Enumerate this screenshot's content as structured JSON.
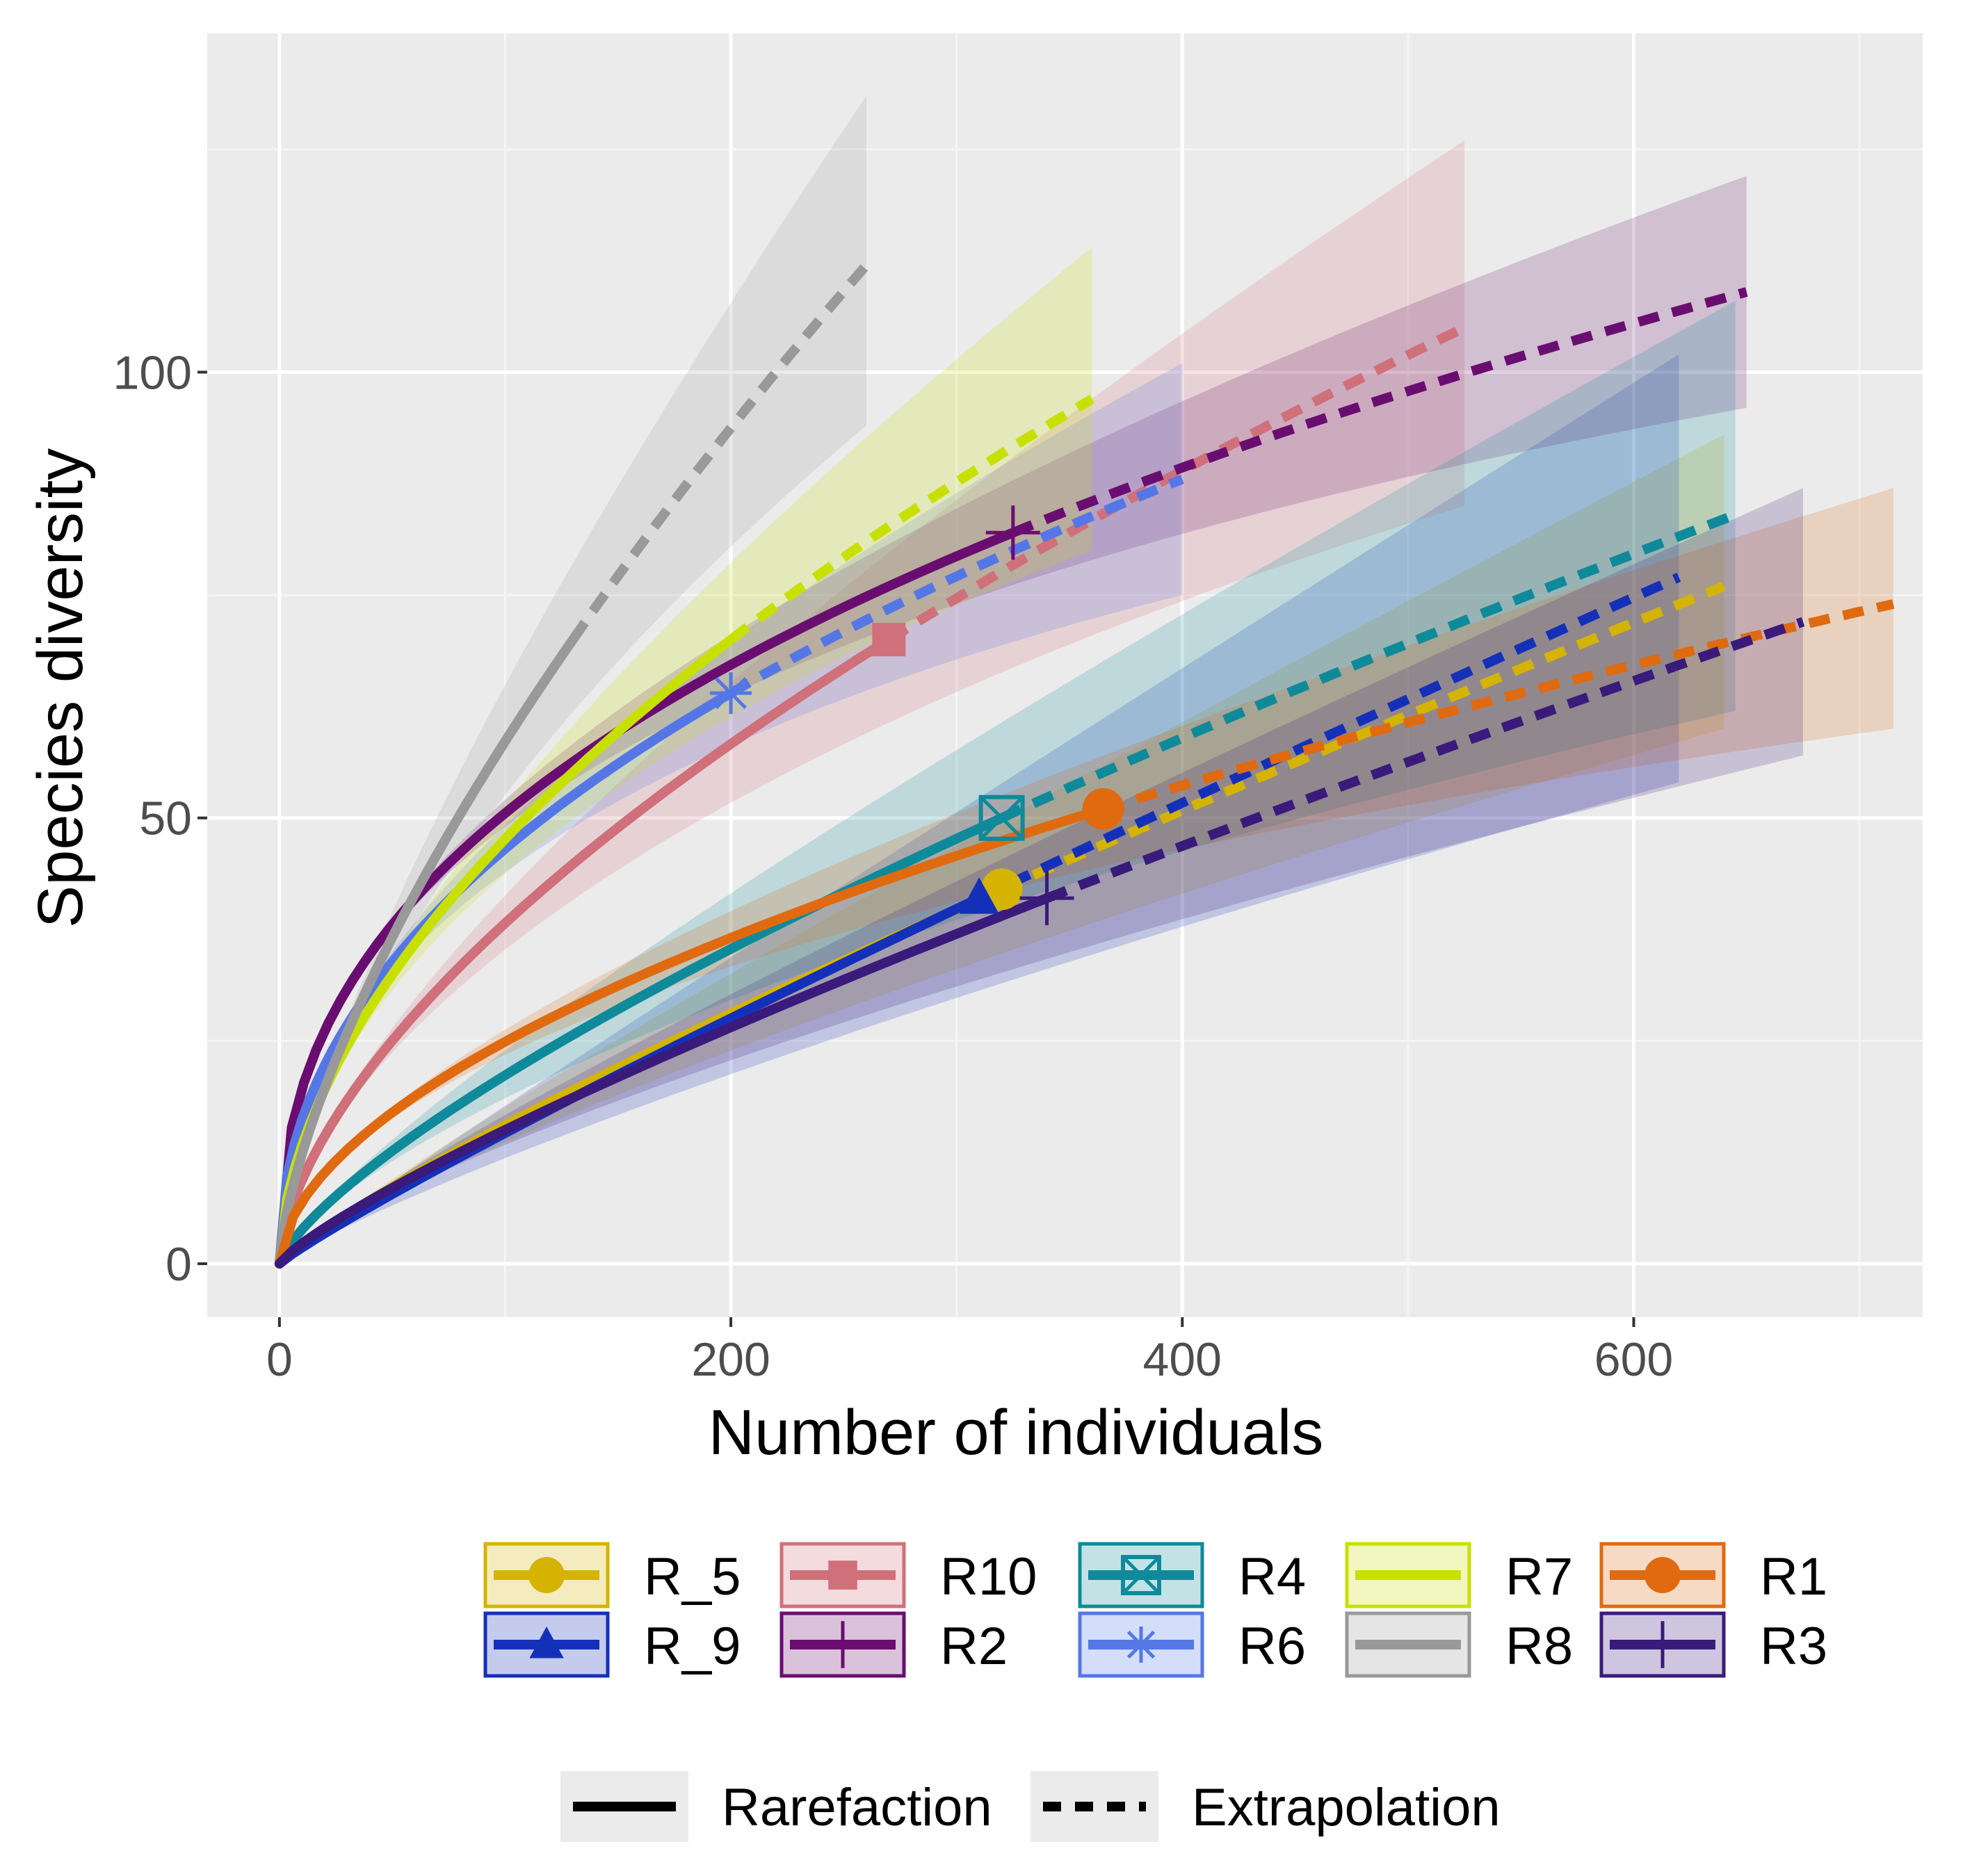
{
  "chart_data": {
    "type": "line",
    "title": "",
    "xlabel": "Number of individuals",
    "ylabel": "Species diversity",
    "xlim": [
      -32,
      728
    ],
    "ylim": [
      -6,
      138
    ],
    "x_ticks": [
      0,
      200,
      400,
      600
    ],
    "x_tick_labels": [
      "0",
      "200",
      "400",
      "600"
    ],
    "y_ticks": [
      0,
      50,
      100
    ],
    "y_tick_labels": [
      "0",
      "50",
      "100"
    ],
    "grid": true,
    "legend_position": "bottom",
    "series": [
      {
        "name": "R_5",
        "color": "#D4B400",
        "marker": "circle",
        "observed": [
          320,
          42
        ],
        "extrapolated_end": [
          640,
          76
        ],
        "band_end": [
          60,
          93
        ]
      },
      {
        "name": "R_9",
        "color": "#1530B8",
        "marker": "triangle",
        "observed": [
          310,
          41
        ],
        "extrapolated_end": [
          620,
          77
        ],
        "band_end": [
          54,
          102
        ]
      },
      {
        "name": "R10",
        "color": "#D0707A",
        "marker": "square",
        "observed": [
          270,
          70
        ],
        "extrapolated_end": [
          525,
          105
        ],
        "band_end": [
          85,
          126
        ]
      },
      {
        "name": "R2",
        "color": "#6A0D70",
        "marker": "plus",
        "observed": [
          325,
          82
        ],
        "extrapolated_end": [
          650,
          109
        ],
        "band_end": [
          96,
          122
        ]
      },
      {
        "name": "R4",
        "color": "#0E8A9A",
        "marker": "boxed-x",
        "observed": [
          320,
          50
        ],
        "extrapolated_end": [
          645,
          84
        ],
        "band_end": [
          62,
          108
        ]
      },
      {
        "name": "R6",
        "color": "#5577E6",
        "marker": "asterisk",
        "observed": [
          200,
          64
        ],
        "extrapolated_end": [
          400,
          88
        ],
        "band_end": [
          75,
          101
        ]
      },
      {
        "name": "R7",
        "color": "#C8E000",
        "marker": "none",
        "observed": [
          200,
          70
        ],
        "extrapolated_end": [
          360,
          97
        ],
        "band_end": [
          80,
          114
        ]
      },
      {
        "name": "R8",
        "color": "#999999",
        "marker": "none",
        "observed": [
          130,
          70
        ],
        "extrapolated_end": [
          260,
          112
        ],
        "band_end": [
          94,
          131
        ]
      },
      {
        "name": "R1",
        "color": "#E06A10",
        "marker": "circle",
        "observed": [
          365,
          51
        ],
        "extrapolated_end": [
          715,
          74
        ],
        "band_end": [
          60,
          87
        ]
      },
      {
        "name": "R3",
        "color": "#3A1A7A",
        "marker": "plus",
        "observed": [
          340,
          41
        ],
        "extrapolated_end": [
          675,
          72
        ],
        "band_end": [
          57,
          87
        ]
      }
    ],
    "line_type_legend": [
      "Rarefaction",
      "Extrapolation"
    ]
  }
}
